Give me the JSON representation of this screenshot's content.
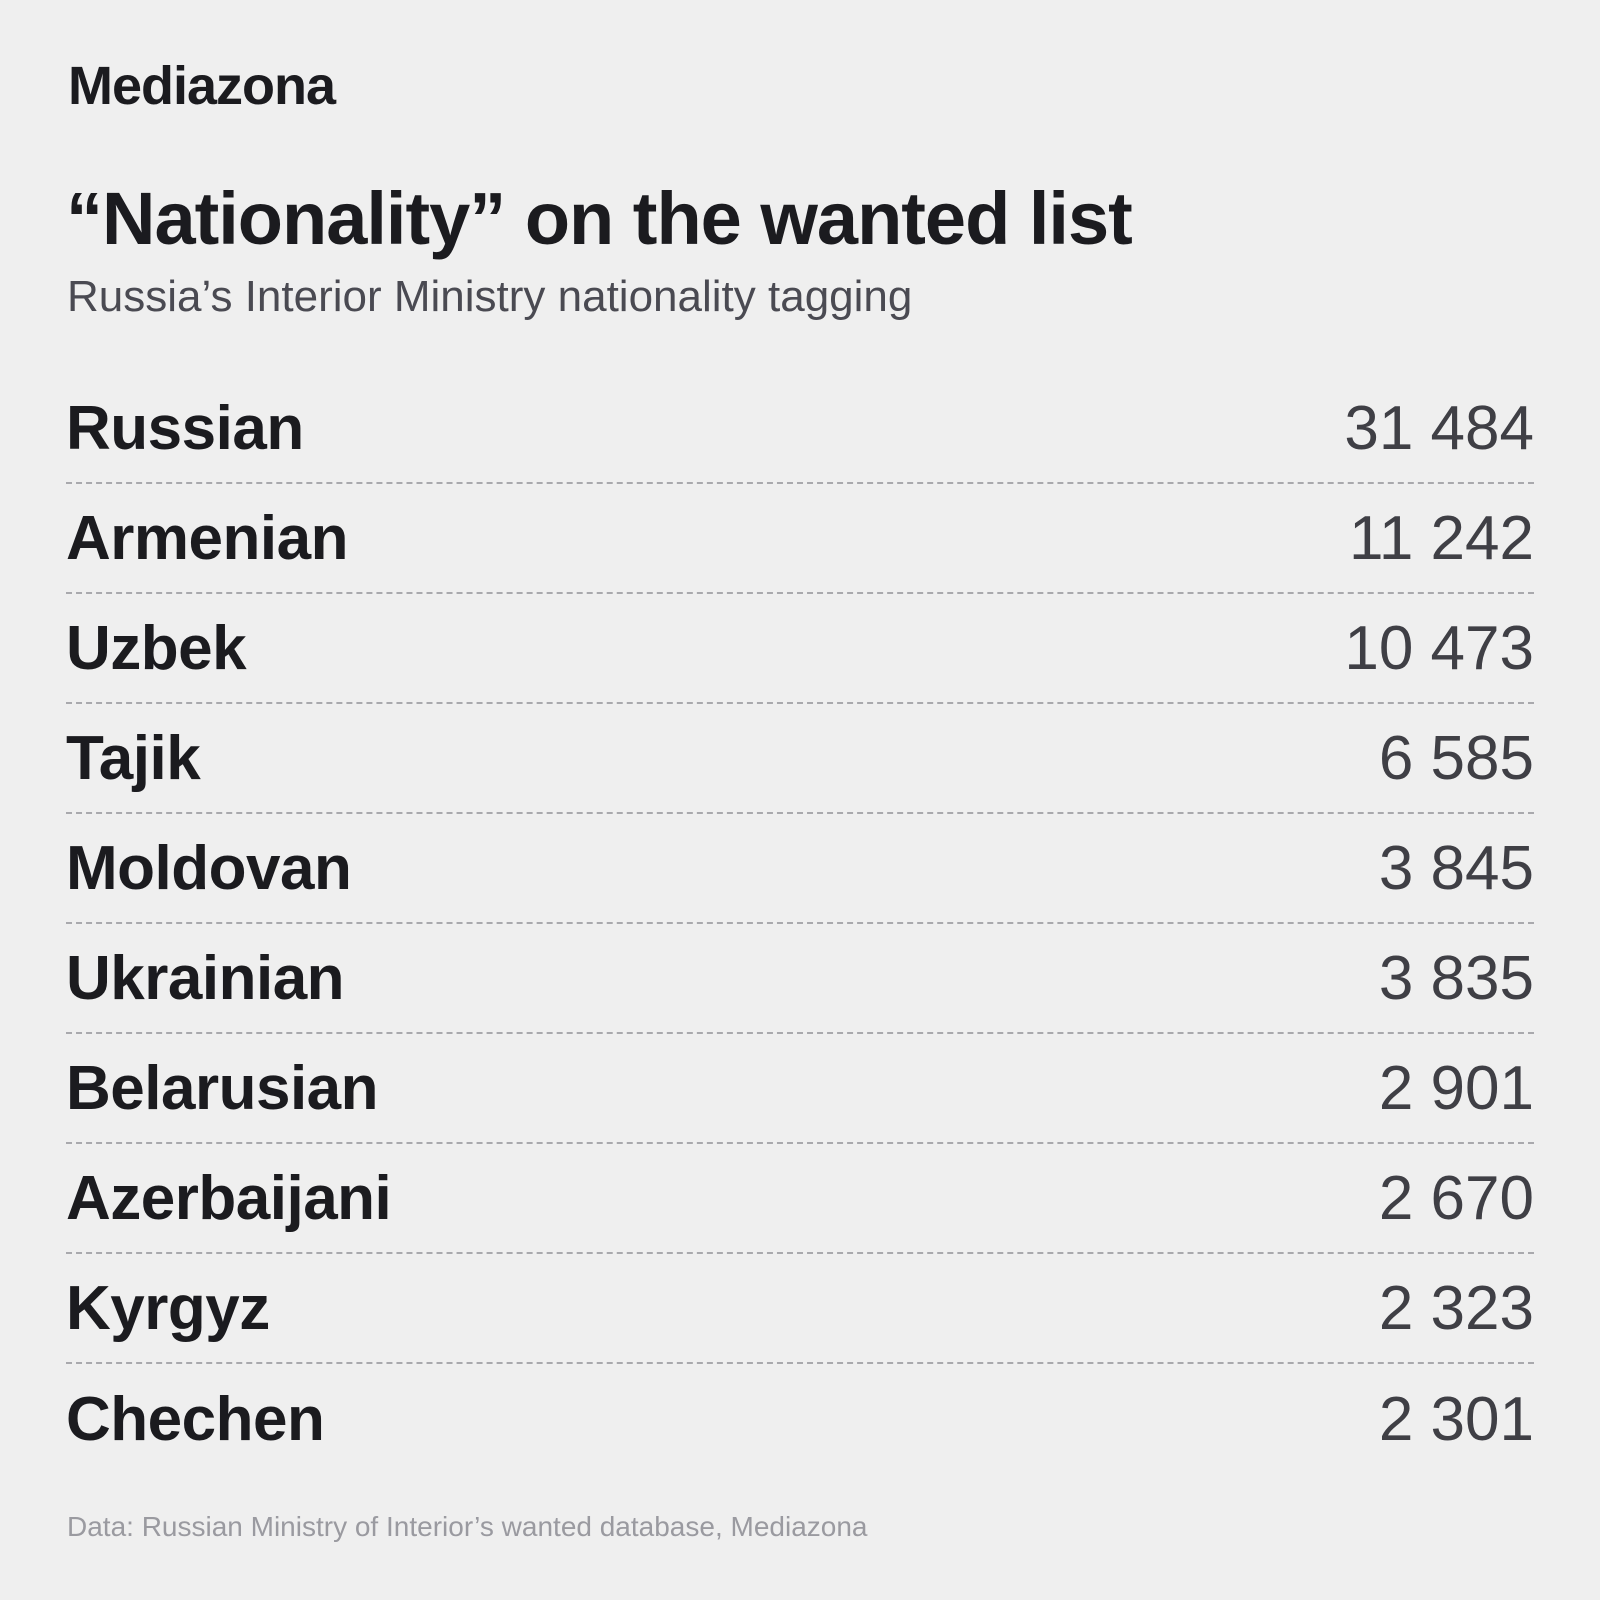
{
  "brand": "Mediazona",
  "title": "“Nationality” on the wanted list",
  "subtitle": "Russia’s Interior Ministry nationality tagging",
  "source": "Data: Russian Ministry of Interior’s wanted database, Mediazona",
  "chart_data": {
    "type": "table",
    "title": "“Nationality” on the wanted list",
    "subtitle": "Russia’s Interior Ministry nationality tagging",
    "rows": [
      {
        "label": "Russian",
        "value": 31484,
        "display": "31 484"
      },
      {
        "label": "Armenian",
        "value": 11242,
        "display": "11 242"
      },
      {
        "label": "Uzbek",
        "value": 10473,
        "display": "10 473"
      },
      {
        "label": "Tajik",
        "value": 6585,
        "display": "6 585"
      },
      {
        "label": "Moldovan",
        "value": 3845,
        "display": "3 845"
      },
      {
        "label": "Ukrainian",
        "value": 3835,
        "display": "3 835"
      },
      {
        "label": "Belarusian",
        "value": 2901,
        "display": "2 901"
      },
      {
        "label": "Azerbaijani",
        "value": 2670,
        "display": "2 670"
      },
      {
        "label": "Kyrgyz",
        "value": 2323,
        "display": "2 323"
      },
      {
        "label": "Chechen",
        "value": 2301,
        "display": "2 301"
      }
    ]
  },
  "colors": {
    "background": "#efefef",
    "text": "#1b1b1f",
    "value": "#3f3f45",
    "subtitle": "#4a4a52",
    "source": "#9a9aa0",
    "divider": "#a9a9ad"
  }
}
